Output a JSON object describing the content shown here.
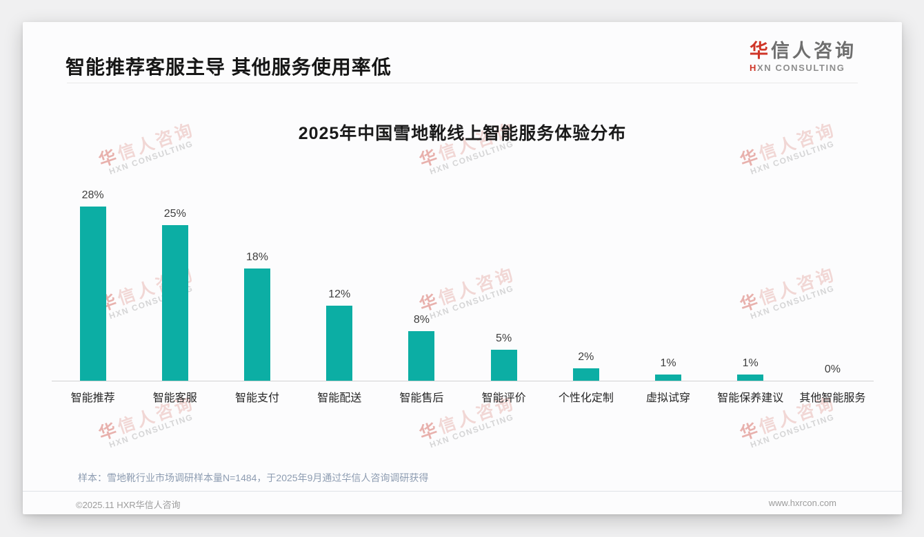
{
  "page": {
    "header": {
      "title": "智能推荐客服主导 其他服务使用率低"
    },
    "logo": {
      "cn_first": "华",
      "cn_rest": "信人咨询",
      "en_first": "H",
      "en_rest": "XN CONSULTING"
    },
    "watermark": {
      "cn_first": "华",
      "cn_rest": "信人咨询",
      "en": "HXN CONSULTING"
    },
    "note": "样本：雪地靴行业市场调研样本量N=1484，于2025年9月通过华信人咨询调研获得",
    "footer": {
      "left": "©2025.11 HXR华信人咨询",
      "right": "www.hxrcon.com"
    }
  },
  "colors": {
    "bar": "#0caea4",
    "logo_red": "#cf3527",
    "title_text": "#161616",
    "note_text": "#8d9cb1",
    "footer_text": "#9c9c9c",
    "axis_line": "#d2d2d2"
  },
  "chart_data": {
    "type": "bar",
    "title": "2025年中国雪地靴线上智能服务体验分布",
    "categories": [
      "智能推荐",
      "智能客服",
      "智能支付",
      "智能配送",
      "智能售后",
      "智能评价",
      "个性化定制",
      "虚拟试穿",
      "智能保养建议",
      "其他智能服务"
    ],
    "values": [
      28,
      25,
      18,
      12,
      8,
      5,
      2,
      1,
      1,
      0
    ],
    "unit": "%",
    "xlabel": "",
    "ylabel": "",
    "ylim": [
      0,
      30
    ],
    "grid": false,
    "legend": false,
    "value_labels": "above-bars",
    "bar_color": "#0caea4"
  }
}
